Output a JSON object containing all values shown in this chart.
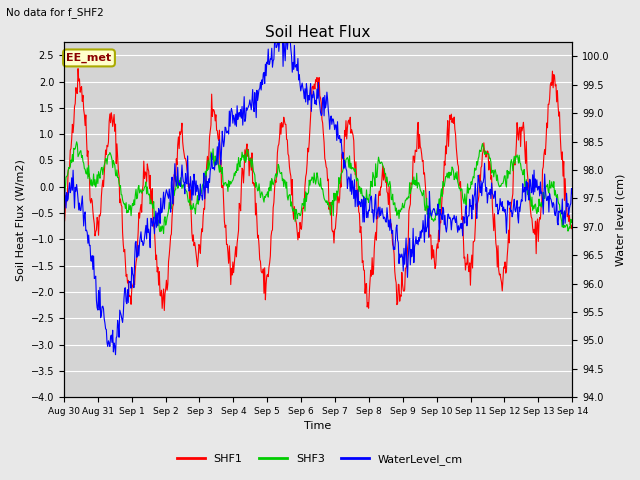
{
  "title": "Soil Heat Flux",
  "subtitle": "No data for f_SHF2",
  "ylabel_left": "Soil Heat Flux (W/m2)",
  "ylabel_right": "Water level (cm)",
  "xlabel": "Time",
  "ylim_left": [
    -4.0,
    2.75
  ],
  "ylim_right": [
    94.0,
    100.25
  ],
  "yticks_left": [
    -4.0,
    -3.5,
    -3.0,
    -2.5,
    -2.0,
    -1.5,
    -1.0,
    -0.5,
    0.0,
    0.5,
    1.0,
    1.5,
    2.0,
    2.5
  ],
  "yticks_right": [
    94.0,
    94.5,
    95.0,
    95.5,
    96.0,
    96.5,
    97.0,
    97.5,
    98.0,
    98.5,
    99.0,
    99.5,
    100.0
  ],
  "xtick_labels": [
    "Aug 30",
    "Aug 31",
    "Sep 1",
    "Sep 2",
    "Sep 3",
    "Sep 4",
    "Sep 5",
    "Sep 6",
    "Sep 7",
    "Sep 8",
    "Sep 9",
    "Sep 10",
    "Sep 11",
    "Sep 12",
    "Sep 13",
    "Sep 14"
  ],
  "color_SHF1": "#ff0000",
  "color_SHF3": "#00cc00",
  "color_water": "#0000ff",
  "background_color": "#e8e8e8",
  "plot_bg_color": "#d4d4d4",
  "annotation_text": "EE_met",
  "legend_labels": [
    "SHF1",
    "SHF3",
    "WaterLevel_cm"
  ]
}
